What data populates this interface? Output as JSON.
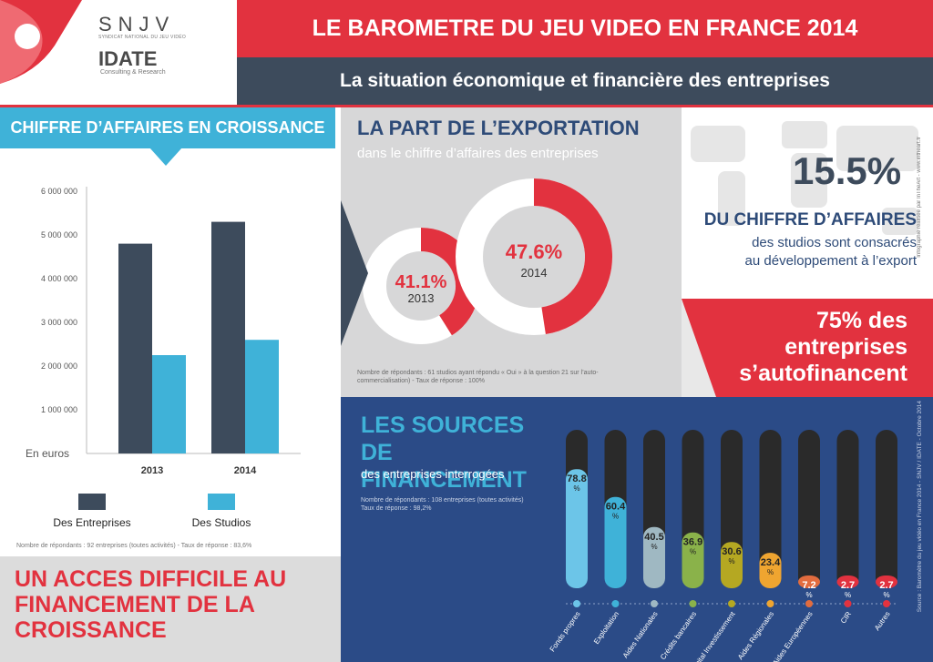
{
  "logo": {
    "snjv": "SNJV",
    "snjv_sub": "SYNDICAT NATIONAL DU JEU VIDÉO",
    "idate": "IDATE",
    "idate_sub": "Consulting & Research"
  },
  "header": {
    "title": "LE BAROMETRE DU JEU VIDEO EN FRANCE 2014",
    "subtitle": "La situation économique et financière des entreprises"
  },
  "ca_section": {
    "title": "CHIFFRE D’AFFAIRES EN CROISSANCE",
    "note": "Nombre de répondants : 92 entreprises (toutes activités) - Taux de réponse : 83,6%"
  },
  "bottom": {
    "text": "UN ACCES DIFFICILE AU FINANCEMENT DE LA CROISSANCE"
  },
  "export_section": {
    "title": "LA PART DE L’EXPORTATION",
    "subtitle": "dans le chiffre d’affaires des entreprises",
    "note": "Nombre de répondants : 61 studios ayant répondu « Oui » à la question 21 sur l’auto-commercialisation) - Taux de réponse : 100%"
  },
  "stat_export": {
    "pct": "15.5%",
    "line1": "DU CHIFFRE D’AFFAIRES",
    "line2": "des studios sont consacrés",
    "line3": "au développement à l’export"
  },
  "credit": "Infographie réalisée par InTheArt - www.intheart.fr",
  "autofin": {
    "text1": "75% des",
    "text2": "entreprises",
    "text3": "s’autofinancent"
  },
  "sources_section": {
    "title1": "LES SOURCES DE",
    "title2": "FINANCEMENT",
    "subtitle": "des entreprises interrogées",
    "note1": "Nombre de répondants : 108 entreprises (toutes activités)",
    "note2": "Taux de réponse : 98,2%"
  },
  "source": "Source : Baromètre du jeu vidéo en France 2014 - SNJV / IDATE - Octobre 2014",
  "colors": {
    "red": "#e2323f",
    "dark": "#3d4b5c",
    "blue": "#3fb2d8",
    "navy": "#2b4b87"
  },
  "chart_data": [
    {
      "type": "bar",
      "categories": [
        "2013",
        "2014"
      ],
      "series": [
        {
          "name": "Des Entreprises",
          "values": [
            4800000,
            5300000
          ],
          "color": "#3d4b5c"
        },
        {
          "name": "Des Studios",
          "values": [
            2250000,
            2600000
          ],
          "color": "#3fb2d8"
        }
      ],
      "ylabel": "En euros",
      "yticks": [
        "1 000 000",
        "2 000 000",
        "3 000 000",
        "4 000 000",
        "5 000 000",
        "6 000 000"
      ],
      "ylim": [
        0,
        6000000
      ]
    },
    {
      "type": "pie",
      "donuts": [
        {
          "year": "2013",
          "label": "41.1%",
          "value": 41.1
        },
        {
          "year": "2014",
          "label": "47.6%",
          "value": 47.6
        }
      ]
    },
    {
      "type": "bar",
      "categories": [
        "Fonds propres",
        "Exploitation",
        "Aides Nationales",
        "Crédits bancaires",
        "Capital Investissement",
        "Aides Régionales",
        "Aides Européennes",
        "CIR",
        "Autres"
      ],
      "values": [
        78.8,
        60.4,
        40.5,
        36.9,
        30.6,
        23.4,
        7.2,
        2.7,
        2.7
      ],
      "labels": [
        "78.8",
        "60.4",
        "40.5",
        "36.9",
        "30.6",
        "23.4",
        "7.2",
        "2.7",
        "2.7"
      ],
      "unit": "%",
      "colors": [
        "#6cc5e8",
        "#3fb2d8",
        "#9fb8c2",
        "#8ab24a",
        "#b5a822",
        "#efa530",
        "#e26c3e",
        "#e2323f",
        "#e2323f"
      ],
      "ylim": [
        0,
        100
      ]
    }
  ]
}
